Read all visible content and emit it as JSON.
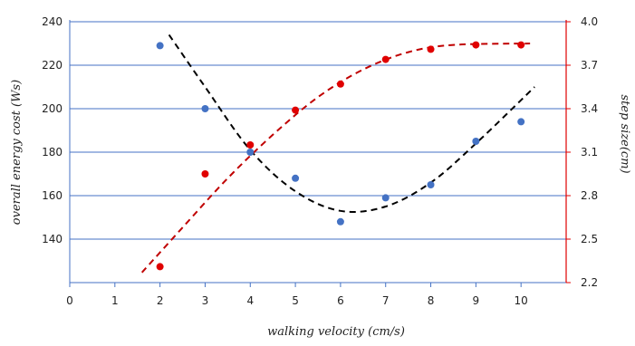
{
  "chart_data": {
    "type": "scatter",
    "xlabel": "walking velocity (cm/s)",
    "ylabel_left": "overall energy cost (Ws)",
    "ylabel_right": "step size(cm)",
    "xlim": [
      0,
      11
    ],
    "xticks": [
      "0",
      "1",
      "2",
      "3",
      "4",
      "5",
      "6",
      "7",
      "8",
      "9",
      "10"
    ],
    "ylim_left": [
      120,
      240
    ],
    "yticks_left": [
      "140",
      "160",
      "180",
      "200",
      "220",
      "240"
    ],
    "ylim_right": [
      2.2,
      4.0
    ],
    "yticks_right": [
      "2.2",
      "2.5",
      "2.8",
      "3.1",
      "3.4",
      "3.7",
      "4.0"
    ],
    "grid": true,
    "colors": {
      "energy": "#4472c4",
      "step": "#e00000",
      "trend_energy": "#000000",
      "trend_step": "#c00000",
      "grid": "#4472c4",
      "right_axis": "#e00000"
    },
    "series": [
      {
        "axis": "left",
        "x": [
          2,
          3,
          4,
          5,
          6,
          7,
          8,
          9,
          10
        ],
        "y": [
          229,
          200,
          180,
          168,
          148,
          159,
          165,
          185,
          194
        ]
      },
      {
        "axis": "right",
        "x": [
          2,
          3,
          4,
          5,
          6,
          7,
          8,
          9,
          10
        ],
        "y": [
          2.31,
          2.95,
          3.15,
          3.39,
          3.57,
          3.74,
          3.81,
          3.84,
          3.84
        ]
      }
    ],
    "trendlines": [
      {
        "axis": "left",
        "style": "dashed",
        "x": [
          2.2,
          3.0,
          4.0,
          5.0,
          6.0,
          7.0,
          8.0,
          9.0,
          10.3
        ],
        "y": [
          234,
          210,
          181,
          162,
          153,
          155,
          166,
          184,
          210
        ]
      },
      {
        "axis": "right",
        "style": "dashed",
        "x": [
          1.6,
          2.5,
          3.5,
          4.5,
          5.5,
          6.5,
          7.5,
          8.5,
          10.2
        ],
        "y": [
          2.27,
          2.58,
          2.92,
          3.22,
          3.48,
          3.67,
          3.79,
          3.84,
          3.85
        ]
      }
    ]
  }
}
